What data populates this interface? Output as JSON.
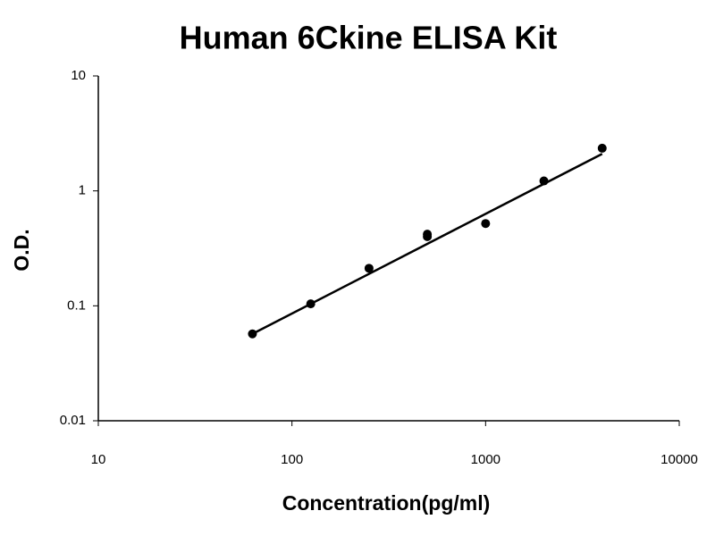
{
  "chart_data": {
    "type": "scatter",
    "title": "Human 6Ckine ELISA Kit",
    "x_label": "Concentration(pg/ml)",
    "y_label": "O.D.",
    "x_scale": "log",
    "y_scale": "log",
    "xlim": [
      10,
      10000
    ],
    "xticks": [
      10,
      100,
      1000,
      10000
    ],
    "ylim": [
      0.01,
      10
    ],
    "yticks": [
      0.01,
      0.1,
      1,
      10
    ],
    "series": [
      {
        "color": "#000000",
        "x": [
          62.5,
          125,
          250,
          500,
          500,
          1000,
          2000,
          4000
        ],
        "values": [
          0.057,
          0.104,
          0.212,
          0.4,
          0.42,
          0.52,
          1.22,
          2.35
        ]
      },
      {
        "type": "line",
        "color": "#000000",
        "x": [
          62.5,
          4000
        ],
        "values": [
          0.057,
          2.1
        ]
      }
    ]
  }
}
